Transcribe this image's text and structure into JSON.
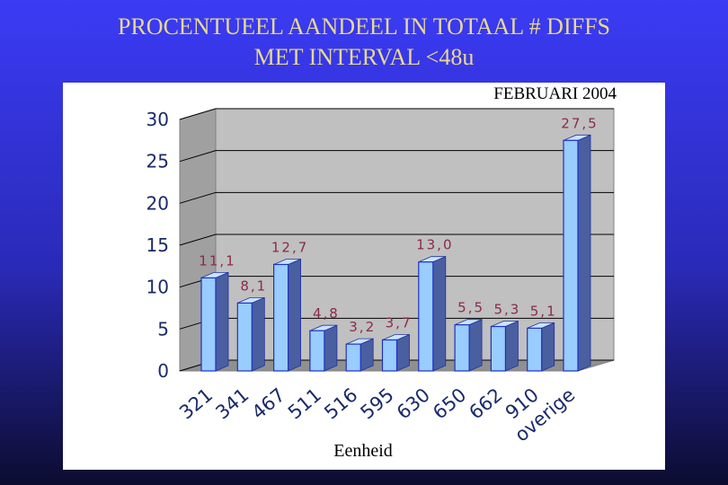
{
  "chart_data": {
    "type": "bar3d",
    "title": [
      "PROCENTUEEL AANDEEL IN TOTAAL # DIFFS",
      "MET INTERVAL <48u"
    ],
    "subtitle": "FEBRUARI 2004",
    "x_label": "Eenheid",
    "categories": [
      "321",
      "341",
      "467",
      "511",
      "516",
      "595",
      "630",
      "650",
      "662",
      "910",
      "overige"
    ],
    "values": [
      11.1,
      8.1,
      12.7,
      4.8,
      3.2,
      3.7,
      13.0,
      5.5,
      5.3,
      5.1,
      27.5
    ],
    "value_labels": [
      "11,1",
      "8,1",
      "12,7",
      "4,8",
      "3,2",
      "3,7",
      "13,0",
      "5,5",
      "5,3",
      "5,1",
      "27,5"
    ],
    "color": "#99ccff",
    "ylim": [
      0,
      30
    ],
    "yticks": [
      0,
      5,
      10,
      15,
      20,
      25,
      30
    ],
    "grid": true
  }
}
